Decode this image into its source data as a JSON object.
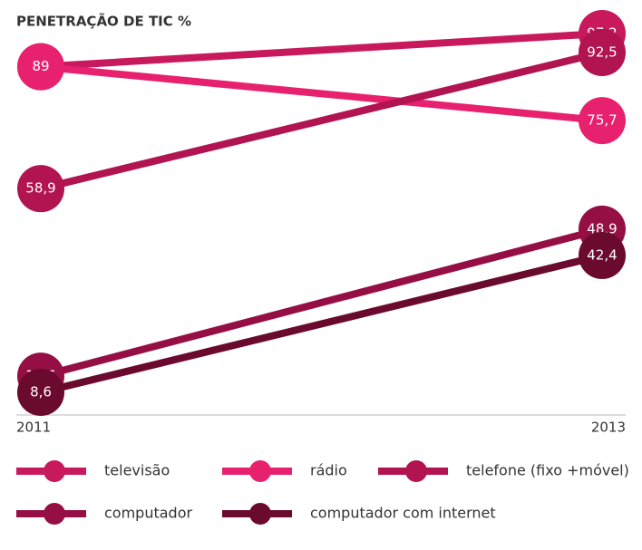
{
  "chart_data": {
    "type": "slope",
    "title": "PENETRAÇÃO DE TIC %",
    "categories": [
      "2011",
      "2013"
    ],
    "series": [
      {
        "name": "televisão",
        "color": "#c8195d",
        "values": [
          89,
          97.2
        ],
        "value_labels": [
          "89",
          "97,2"
        ]
      },
      {
        "name": "rádio",
        "color": "#e8216f",
        "values": [
          89,
          75.7
        ],
        "value_labels": [
          "89",
          "75,7"
        ]
      },
      {
        "name": "telefone (fixo +móvel)",
        "color": "#b11450",
        "values": [
          58.9,
          92.5
        ],
        "value_labels": [
          "58,9",
          "92,5"
        ]
      },
      {
        "name": "computador",
        "color": "#950f45",
        "values": [
          12.6,
          48.9
        ],
        "value_labels": [
          "12,6",
          "48,9"
        ]
      },
      {
        "name": "computador com internet",
        "color": "#6a0a2e",
        "values": [
          8.6,
          42.4
        ],
        "value_labels": [
          "8,6",
          "42,4"
        ]
      }
    ]
  }
}
